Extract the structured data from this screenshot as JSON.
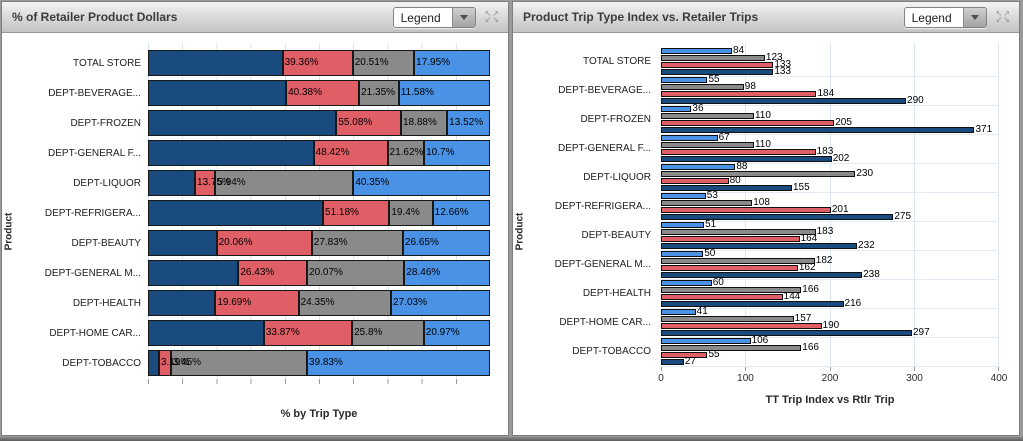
{
  "left_panel": {
    "title": "% of Retailer Product Dollars",
    "legend": {
      "label": "Legend"
    },
    "expand_icon": "expand-arrows-icon",
    "xlabel": "% by Trip Type",
    "ylabel": "Product"
  },
  "right_panel": {
    "title": "Product Trip Type Index vs. Retailer Trips",
    "legend": {
      "label": "Legend"
    },
    "expand_icon": "expand-arrows-icon",
    "xlabel": "TT Trip Index vs Rtlr Trip",
    "ylabel": "Product"
  },
  "chart_data": [
    {
      "type": "bar",
      "orientation": "horizontal",
      "stacking": "100%",
      "title": "% of Retailer Product Dollars",
      "xlabel": "% by Trip Type",
      "ylabel": "Product",
      "xlim": [
        0,
        100
      ],
      "grid": true,
      "tick_interval": 10,
      "categories": [
        "TOTAL STORE",
        "DEPT-BEVERAGE...",
        "DEPT-FROZEN",
        "DEPT-GENERAL F...",
        "DEPT-LIQUOR",
        "DEPT-REFRIGERA...",
        "DEPT-BEAUTY",
        "DEPT-GENERAL M...",
        "DEPT-HEALTH",
        "DEPT-HOME CAR...",
        "DEPT-TOBACCO"
      ],
      "series": [
        {
          "name": "dark-blue",
          "color": "#1A4B7F",
          "values": [
            39.36,
            40.38,
            55.08,
            48.42,
            13.75,
            51.18,
            20.06,
            26.43,
            19.69,
            33.87,
            3.19
          ],
          "labels": [
            "39.36%",
            "40.38%",
            "55.08%",
            "48.42%",
            "13.75%",
            "51.18%",
            "20.06%",
            "26.43%",
            "19.69%",
            "33.87%",
            "3.19%"
          ]
        },
        {
          "name": "red",
          "color": "#E05E66",
          "values": [
            20.51,
            21.35,
            18.88,
            21.62,
            5.94,
            19.4,
            27.83,
            20.07,
            24.35,
            25.8,
            3.45
          ],
          "labels": [
            "20.51%",
            "21.35%",
            "18.88%",
            "21.62%",
            "5.94%",
            "19.4%",
            "27.83%",
            "20.07%",
            "24.35%",
            "25.8%",
            "3.45%"
          ]
        },
        {
          "name": "gray",
          "color": "#8A8A8A",
          "values": [
            17.95,
            11.58,
            13.52,
            10.7,
            40.35,
            12.66,
            26.65,
            28.46,
            27.03,
            20.97,
            39.83
          ],
          "labels": [
            "17.95%",
            "11.58%",
            "13.52%",
            "10.7%",
            "40.35%",
            "12.66%",
            "26.65%",
            "28.46%",
            "27.03%",
            "20.97%",
            "39.83%"
          ]
        },
        {
          "name": "light-blue",
          "color": "#4A92E5",
          "values": [
            22.18,
            26.69,
            12.52,
            19.26,
            39.96,
            16.76,
            25.46,
            25.04,
            28.93,
            19.36,
            53.53
          ],
          "labels": null
        }
      ]
    },
    {
      "type": "bar",
      "orientation": "horizontal",
      "stacking": "grouped",
      "title": "Product Trip Type Index vs. Retailer Trips",
      "xlabel": "TT Trip Index vs Rtlr Trip",
      "ylabel": "Product",
      "xlim": [
        0,
        400
      ],
      "grid": true,
      "x_ticks": [
        "0",
        "100",
        "200",
        "300",
        "400"
      ],
      "categories": [
        "TOTAL STORE",
        "DEPT-BEVERAGE...",
        "DEPT-FROZEN",
        "DEPT-GENERAL F...",
        "DEPT-LIQUOR",
        "DEPT-REFRIGERA...",
        "DEPT-BEAUTY",
        "DEPT-GENERAL M...",
        "DEPT-HEALTH",
        "DEPT-HOME CAR...",
        "DEPT-TOBACCO"
      ],
      "series": [
        {
          "name": "light-blue",
          "color": "#4A92E5",
          "values": [
            84,
            55,
            36,
            67,
            88,
            53,
            51,
            50,
            60,
            41,
            106
          ]
        },
        {
          "name": "gray",
          "color": "#8A8A8A",
          "values": [
            123,
            98,
            110,
            110,
            230,
            108,
            183,
            182,
            166,
            157,
            166
          ]
        },
        {
          "name": "red",
          "color": "#E05E66",
          "values": [
            133,
            184,
            205,
            183,
            80,
            201,
            164,
            162,
            144,
            190,
            55
          ]
        },
        {
          "name": "dark-blue",
          "color": "#1A4B7F",
          "values": [
            133,
            290,
            371,
            202,
            155,
            275,
            232,
            238,
            216,
            297,
            27
          ]
        }
      ]
    }
  ]
}
